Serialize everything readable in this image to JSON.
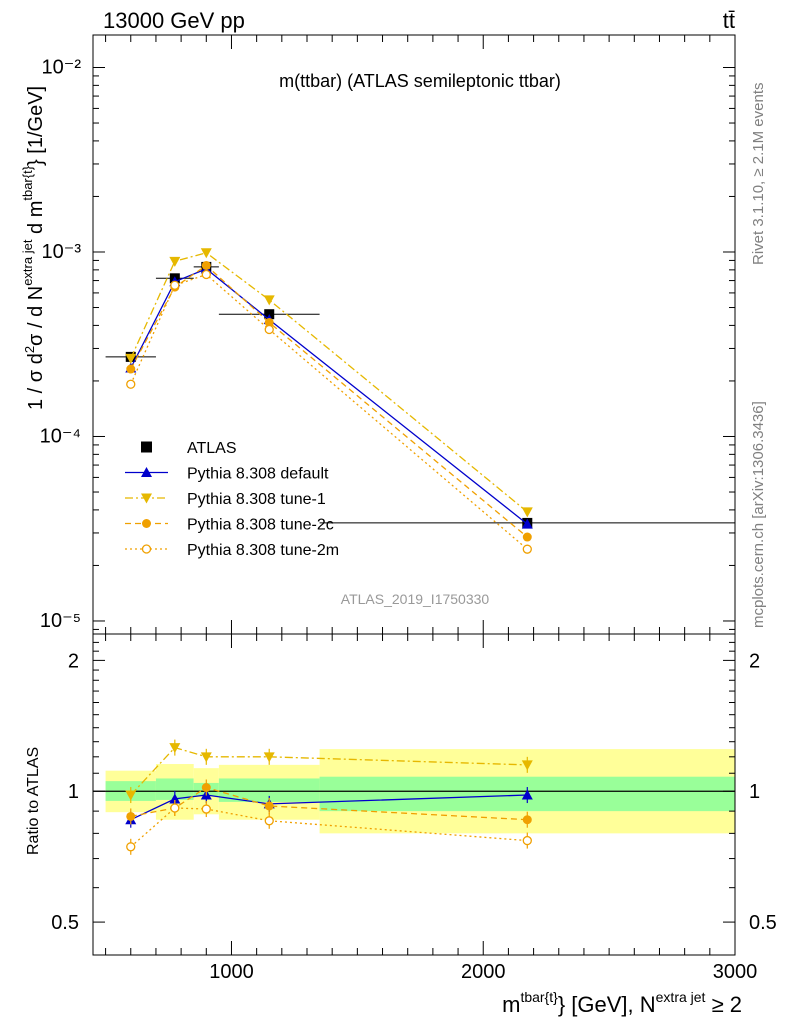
{
  "header": {
    "left": "13000 GeV pp",
    "right": "tt̄"
  },
  "side_labels": {
    "rivet": "Rivet 3.1.10, ≥ 2.1M events",
    "mcplots": "mcplots.cern.ch [arXiv:1306.3436]"
  },
  "analysis_id": "ATLAS_2019_I1750330",
  "chart_data": [
    {
      "type": "line",
      "panel": "main",
      "title": "m(ttbar) (ATLAS semileptonic ttbar)",
      "ylabel": "1 / σ d²σ / d N^extra jet d m^tbar{t} [1/GeV]",
      "yscale": "log",
      "xlim": [
        450,
        3000
      ],
      "ylim": [
        8.5e-06,
        0.015
      ],
      "ytick_labels": [
        "10⁻⁵",
        "10⁻⁴",
        "10⁻³",
        "10⁻²"
      ],
      "legend_position": "lower-left",
      "x": [
        600,
        775,
        900,
        1150,
        2175
      ],
      "bins": [
        [
          500,
          700
        ],
        [
          700,
          850
        ],
        [
          850,
          950
        ],
        [
          950,
          1350
        ],
        [
          1350,
          3000
        ]
      ],
      "series": [
        {
          "name": "ATLAS",
          "marker": "square",
          "color": "#000000",
          "values": [
            0.00027,
            0.00072,
            0.00083,
            0.00046,
            3.4e-05
          ]
        },
        {
          "name": "Pythia 8.308 default",
          "marker": "triangle-up",
          "color": "#0000cc",
          "line": "solid",
          "values": [
            0.000235,
            0.00069,
            0.00081,
            0.00043,
            3.35e-05
          ]
        },
        {
          "name": "Pythia 8.308 tune-1",
          "marker": "triangle-down",
          "color": "#e6b800",
          "line": "dashdot",
          "values": [
            0.000265,
            0.00089,
            0.00099,
            0.00055,
            3.9e-05
          ]
        },
        {
          "name": "Pythia 8.308 tune-2c",
          "marker": "circle",
          "color": "#f0a000",
          "line": "dashed",
          "values": [
            0.000232,
            0.000645,
            0.000845,
            0.000415,
            2.85e-05
          ]
        },
        {
          "name": "Pythia 8.308 tune-2m",
          "marker": "circle-open",
          "color": "#f0a000",
          "line": "dotted",
          "values": [
            0.000192,
            0.00066,
            0.000755,
            0.00038,
            2.45e-05
          ]
        }
      ]
    },
    {
      "type": "line",
      "panel": "ratio",
      "ylabel": "Ratio to ATLAS",
      "xlabel": "m^tbar{t} [GeV], N^extra jet ≥ 2",
      "xlim": [
        450,
        3000
      ],
      "ylim": [
        0.42,
        2.3
      ],
      "yscale": "log",
      "x_tick_labels": [
        "1000",
        "2000",
        "3000"
      ],
      "y_tick_labels": [
        "0.5",
        "1",
        "2"
      ],
      "bands": {
        "bins": [
          [
            500,
            700
          ],
          [
            700,
            850
          ],
          [
            850,
            950
          ],
          [
            950,
            1350
          ],
          [
            1350,
            3000
          ]
        ],
        "green": [
          [
            0.95,
            1.055
          ],
          [
            0.955,
            1.07
          ],
          [
            0.975,
            1.045
          ],
          [
            0.945,
            1.07
          ],
          [
            0.9,
            1.08
          ]
        ],
        "yellow": [
          [
            0.895,
            1.115
          ],
          [
            0.86,
            1.155
          ],
          [
            0.885,
            1.13
          ],
          [
            0.86,
            1.15
          ],
          [
            0.8,
            1.25
          ]
        ]
      },
      "series": [
        {
          "name": "Pythia 8.308 default",
          "values": [
            0.86,
            0.96,
            0.98,
            0.935,
            0.98
          ]
        },
        {
          "name": "Pythia 8.308 tune-1",
          "values": [
            0.98,
            1.26,
            1.2,
            1.2,
            1.15
          ]
        },
        {
          "name": "Pythia 8.308 tune-2c",
          "values": [
            0.875,
            0.915,
            1.02,
            0.925,
            0.86
          ]
        },
        {
          "name": "Pythia 8.308 tune-2m",
          "values": [
            0.745,
            0.915,
            0.91,
            0.855,
            0.77
          ]
        }
      ]
    }
  ]
}
